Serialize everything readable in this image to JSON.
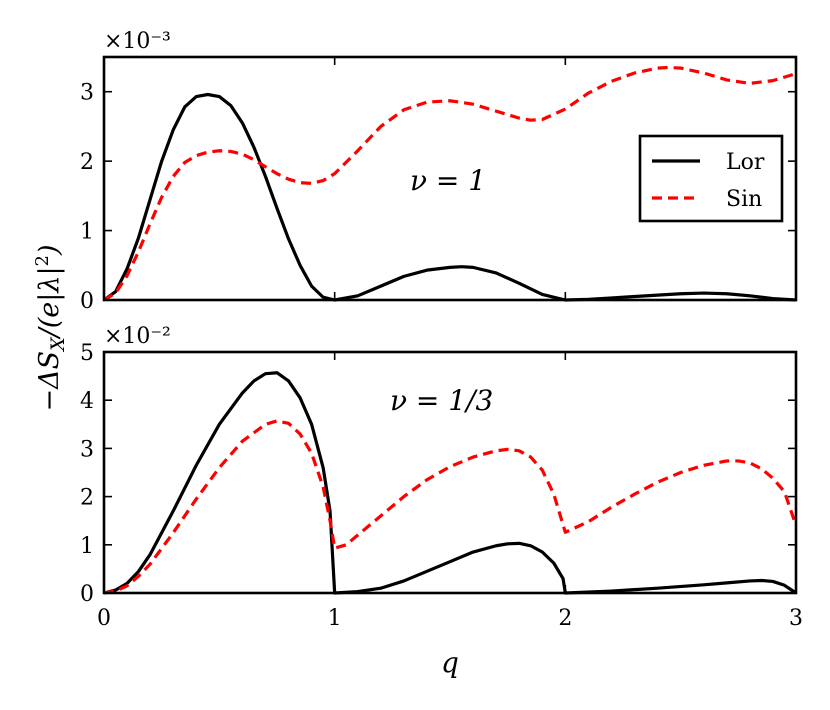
{
  "chart_data": [
    {
      "type": "line",
      "panel": "top",
      "annotation": "ν = 1",
      "scale_label": "×10⁻³",
      "xlim": [
        0,
        3
      ],
      "ylim": [
        0,
        3.5
      ],
      "yticks": [
        0,
        1,
        2,
        3
      ],
      "xticks": [
        0,
        1,
        2,
        3
      ],
      "legend": {
        "placement": "center-right",
        "entries": [
          "Lor",
          "Sin"
        ]
      },
      "series": [
        {
          "name": "Lor",
          "color": "#000000",
          "style": "solid",
          "x": [
            0,
            0.05,
            0.1,
            0.15,
            0.2,
            0.25,
            0.3,
            0.35,
            0.4,
            0.45,
            0.5,
            0.55,
            0.6,
            0.65,
            0.7,
            0.75,
            0.8,
            0.85,
            0.9,
            0.95,
            1.0,
            1.1,
            1.2,
            1.3,
            1.4,
            1.5,
            1.55,
            1.6,
            1.7,
            1.8,
            1.9,
            2.0,
            2.1,
            2.2,
            2.3,
            2.4,
            2.5,
            2.6,
            2.7,
            2.8,
            2.9,
            3.0
          ],
          "y": [
            0,
            0.12,
            0.45,
            0.9,
            1.45,
            2.0,
            2.45,
            2.78,
            2.93,
            2.96,
            2.93,
            2.8,
            2.55,
            2.2,
            1.78,
            1.32,
            0.88,
            0.5,
            0.2,
            0.04,
            0,
            0.06,
            0.2,
            0.34,
            0.43,
            0.47,
            0.48,
            0.47,
            0.39,
            0.24,
            0.08,
            0,
            0.01,
            0.03,
            0.05,
            0.07,
            0.09,
            0.1,
            0.09,
            0.06,
            0.02,
            0
          ]
        },
        {
          "name": "Sin",
          "color": "#ff0000",
          "style": "dashed",
          "x": [
            0,
            0.05,
            0.1,
            0.15,
            0.2,
            0.25,
            0.3,
            0.35,
            0.4,
            0.45,
            0.5,
            0.55,
            0.6,
            0.65,
            0.7,
            0.75,
            0.8,
            0.85,
            0.9,
            0.95,
            1.0,
            1.1,
            1.2,
            1.3,
            1.4,
            1.5,
            1.6,
            1.7,
            1.8,
            1.85,
            1.9,
            2.0,
            2.1,
            2.2,
            2.3,
            2.4,
            2.45,
            2.5,
            2.6,
            2.7,
            2.8,
            2.9,
            3.0
          ],
          "y": [
            0,
            0.1,
            0.35,
            0.7,
            1.1,
            1.48,
            1.78,
            1.98,
            2.08,
            2.13,
            2.15,
            2.14,
            2.1,
            2.02,
            1.92,
            1.82,
            1.74,
            1.69,
            1.68,
            1.72,
            1.82,
            2.15,
            2.5,
            2.74,
            2.85,
            2.87,
            2.82,
            2.72,
            2.62,
            2.59,
            2.6,
            2.75,
            2.98,
            3.15,
            3.27,
            3.34,
            3.35,
            3.34,
            3.27,
            3.17,
            3.12,
            3.16,
            3.26
          ]
        }
      ]
    },
    {
      "type": "line",
      "panel": "bottom",
      "annotation": "ν = 1/3",
      "scale_label": "×10⁻²",
      "xlabel": "q",
      "xlim": [
        0,
        3
      ],
      "ylim": [
        0,
        5
      ],
      "yticks": [
        0,
        1,
        2,
        3,
        4,
        5
      ],
      "xticks": [
        0,
        1,
        2,
        3
      ],
      "series": [
        {
          "name": "Lor",
          "color": "#000000",
          "style": "solid",
          "x": [
            0,
            0.05,
            0.1,
            0.15,
            0.2,
            0.3,
            0.4,
            0.5,
            0.6,
            0.65,
            0.7,
            0.75,
            0.8,
            0.85,
            0.9,
            0.95,
            0.98,
            1.0,
            1.001,
            1.1,
            1.2,
            1.3,
            1.4,
            1.5,
            1.6,
            1.7,
            1.75,
            1.8,
            1.85,
            1.9,
            1.95,
            1.99,
            2.0,
            2.001,
            2.2,
            2.4,
            2.6,
            2.7,
            2.8,
            2.85,
            2.9,
            2.95,
            3.0
          ],
          "y": [
            0,
            0.06,
            0.2,
            0.45,
            0.8,
            1.7,
            2.65,
            3.5,
            4.15,
            4.4,
            4.55,
            4.57,
            4.4,
            4.05,
            3.5,
            2.6,
            1.7,
            0,
            0,
            0.03,
            0.1,
            0.25,
            0.45,
            0.65,
            0.85,
            0.98,
            1.02,
            1.03,
            0.98,
            0.85,
            0.62,
            0.3,
            0,
            0,
            0.04,
            0.1,
            0.17,
            0.21,
            0.25,
            0.26,
            0.24,
            0.16,
            0
          ]
        },
        {
          "name": "Sin",
          "color": "#ff0000",
          "style": "dashed",
          "x": [
            0,
            0.05,
            0.1,
            0.15,
            0.2,
            0.3,
            0.4,
            0.5,
            0.6,
            0.7,
            0.75,
            0.8,
            0.85,
            0.9,
            0.95,
            0.98,
            1.0,
            1.05,
            1.1,
            1.2,
            1.3,
            1.4,
            1.5,
            1.6,
            1.7,
            1.75,
            1.8,
            1.85,
            1.9,
            1.95,
            2.0,
            2.1,
            2.2,
            2.3,
            2.4,
            2.5,
            2.6,
            2.7,
            2.75,
            2.8,
            2.85,
            2.9,
            2.95,
            3.0
          ],
          "y": [
            0,
            0.04,
            0.15,
            0.35,
            0.6,
            1.25,
            1.95,
            2.6,
            3.15,
            3.5,
            3.57,
            3.52,
            3.3,
            2.9,
            2.2,
            1.5,
            0.93,
            1.0,
            1.2,
            1.6,
            2.0,
            2.35,
            2.62,
            2.82,
            2.95,
            2.98,
            2.95,
            2.82,
            2.55,
            2.05,
            1.26,
            1.48,
            1.78,
            2.05,
            2.3,
            2.5,
            2.65,
            2.74,
            2.74,
            2.7,
            2.58,
            2.38,
            2.1,
            1.4
          ]
        }
      ]
    }
  ]
}
